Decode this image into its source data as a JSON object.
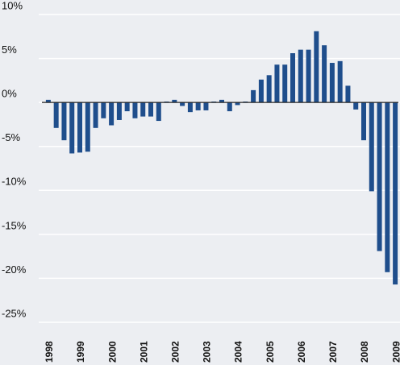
{
  "chart_data": {
    "type": "bar",
    "categories": [
      "1998",
      null,
      null,
      null,
      "1999",
      null,
      null,
      null,
      "2000",
      null,
      null,
      null,
      "2001",
      null,
      null,
      null,
      "2002",
      null,
      null,
      null,
      "2003",
      null,
      null,
      null,
      "2004",
      null,
      null,
      null,
      "2005",
      null,
      null,
      null,
      "2006",
      null,
      null,
      null,
      "2007",
      null,
      null,
      null,
      "2008",
      null,
      null,
      null,
      "2009"
    ],
    "values": [
      0.3,
      -2.9,
      -4.3,
      -5.8,
      -5.7,
      -5.6,
      -2.9,
      -1.8,
      -2.6,
      -2.0,
      -1.0,
      -1.8,
      -1.6,
      -1.6,
      -2.1,
      0.1,
      0.3,
      -0.4,
      -1.1,
      -0.9,
      -0.9,
      0.1,
      0.3,
      -1.0,
      -0.3,
      0.1,
      1.4,
      2.6,
      3.1,
      4.3,
      4.3,
      5.6,
      6.0,
      6.0,
      8.1,
      6.5,
      4.5,
      4.7,
      1.9,
      -0.8,
      -4.3,
      -10.1,
      -16.9,
      -19.3,
      -20.7
    ],
    "color": "#1f4e8c",
    "ylim": [
      -25,
      10
    ],
    "yticks": [
      {
        "value": -25,
        "label": "-25%"
      },
      {
        "value": -20,
        "label": "-20%"
      },
      {
        "value": -15,
        "label": "-15%"
      },
      {
        "value": -10,
        "label": "-10%"
      },
      {
        "value": -5,
        "label": "-5%"
      },
      {
        "value": 0,
        "label": "0%"
      },
      {
        "value": 5,
        "label": "5%"
      },
      {
        "value": 10,
        "label": "10%"
      }
    ],
    "grid": true
  }
}
